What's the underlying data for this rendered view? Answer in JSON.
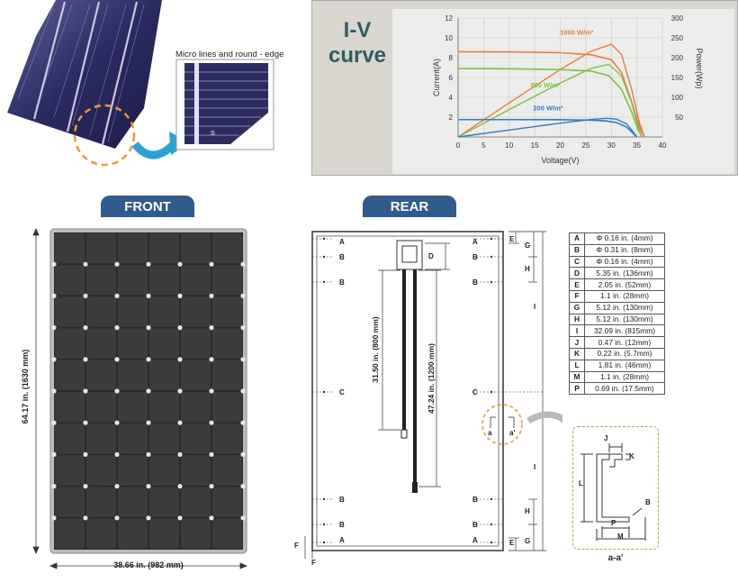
{
  "cell_photo": {
    "caption": "Micro lines and round - edge",
    "mark": "S"
  },
  "iv_chart": {
    "title_line1": "I-V",
    "title_line2": "curve"
  },
  "chart_data": {
    "type": "line",
    "title": "I-V curve",
    "xlabel": "Voltage(V)",
    "ylabel": "Current(A)",
    "y2label": "Power(Wp)",
    "xlim": [
      0,
      40
    ],
    "ylim": [
      0,
      12
    ],
    "y2lim": [
      0,
      300
    ],
    "x_ticks": [
      "0",
      "5",
      "10",
      "15",
      "20",
      "25",
      "30",
      "35",
      "40"
    ],
    "y_ticks": [
      "2",
      "4",
      "6",
      "8",
      "10",
      "12"
    ],
    "y2_ticks": [
      "50",
      "100",
      "150",
      "200",
      "250",
      "300"
    ],
    "series": [
      {
        "name": "1000 W/m²",
        "color": "#f07a3a",
        "iv": [
          [
            0,
            8.6
          ],
          [
            10,
            8.58
          ],
          [
            20,
            8.5
          ],
          [
            26,
            8.3
          ],
          [
            30,
            7.8
          ],
          [
            32,
            6.5
          ],
          [
            34,
            3.5
          ],
          [
            35.5,
            1.0
          ],
          [
            36.5,
            0
          ]
        ],
        "power": [
          [
            0,
            0
          ],
          [
            10,
            86
          ],
          [
            20,
            170
          ],
          [
            26,
            216
          ],
          [
            30,
            234
          ],
          [
            32,
            208
          ],
          [
            34,
            119
          ],
          [
            35.5,
            36
          ],
          [
            36.5,
            0
          ]
        ]
      },
      {
        "name": "800 W/m²",
        "color": "#7cc242",
        "iv": [
          [
            0,
            6.9
          ],
          [
            10,
            6.88
          ],
          [
            20,
            6.8
          ],
          [
            26,
            6.65
          ],
          [
            29.5,
            6.2
          ],
          [
            32,
            4.8
          ],
          [
            34,
            2.5
          ],
          [
            35.2,
            0.8
          ],
          [
            36,
            0
          ]
        ],
        "power": [
          [
            0,
            0
          ],
          [
            10,
            69
          ],
          [
            20,
            136
          ],
          [
            26,
            173
          ],
          [
            29.5,
            183
          ],
          [
            32,
            154
          ],
          [
            34,
            85
          ],
          [
            35.2,
            28
          ],
          [
            36,
            0
          ]
        ]
      },
      {
        "name": "200 W/m²",
        "color": "#2d7cc4",
        "iv": [
          [
            0,
            1.75
          ],
          [
            10,
            1.75
          ],
          [
            20,
            1.74
          ],
          [
            26,
            1.7
          ],
          [
            29,
            1.62
          ],
          [
            31,
            1.45
          ],
          [
            33,
            1.0
          ],
          [
            34.2,
            0.4
          ],
          [
            35,
            0
          ]
        ],
        "power": [
          [
            0,
            0
          ],
          [
            10,
            17.5
          ],
          [
            20,
            34.8
          ],
          [
            26,
            44.2
          ],
          [
            29,
            47
          ],
          [
            31,
            45
          ],
          [
            33,
            33
          ],
          [
            34.2,
            13.7
          ],
          [
            35,
            0
          ]
        ]
      }
    ]
  },
  "front": {
    "tab": "FRONT",
    "height_label": "64.17 in. (1630 mm)",
    "width_label": "38.66 in. (982 mm)"
  },
  "rear": {
    "tab": "REAR",
    "cable1": "31.50 in. (800 mm)",
    "cable2": "47.24 in. (1200 mm)",
    "section_label": "a-a'",
    "a_label": "a",
    "a2_label": "a'"
  },
  "spec_table": [
    {
      "key": "A",
      "value": "Φ 0.16 in. (4mm)"
    },
    {
      "key": "B",
      "value": "Φ 0.31 in. (8mm)"
    },
    {
      "key": "C",
      "value": "Φ 0.16 in. (4mm)"
    },
    {
      "key": "D",
      "value": "5.35 in. (136mm)"
    },
    {
      "key": "E",
      "value": "2.05 in. (52mm)"
    },
    {
      "key": "F",
      "value": "1.1 in. (28mm)"
    },
    {
      "key": "G",
      "value": "5.12 in. (130mm)"
    },
    {
      "key": "H",
      "value": "5.12 in. (130mm)"
    },
    {
      "key": "I",
      "value": "32.09 in. (815mm)"
    },
    {
      "key": "J",
      "value": "0.47 in. (12mm)"
    },
    {
      "key": "K",
      "value": "0.22 in. (5.7mm)"
    },
    {
      "key": "L",
      "value": "1.81 in. (46mm)"
    },
    {
      "key": "M",
      "value": "1.1 in. (28mm)"
    },
    {
      "key": "P",
      "value": "0.69 in. (17.5mm)"
    }
  ],
  "letters": {
    "A": "A",
    "B": "B",
    "C": "C",
    "D": "D",
    "E": "E",
    "F": "F",
    "G": "G",
    "H": "H",
    "I": "I",
    "J": "J",
    "K": "K",
    "L": "L",
    "M": "M",
    "P": "P"
  }
}
